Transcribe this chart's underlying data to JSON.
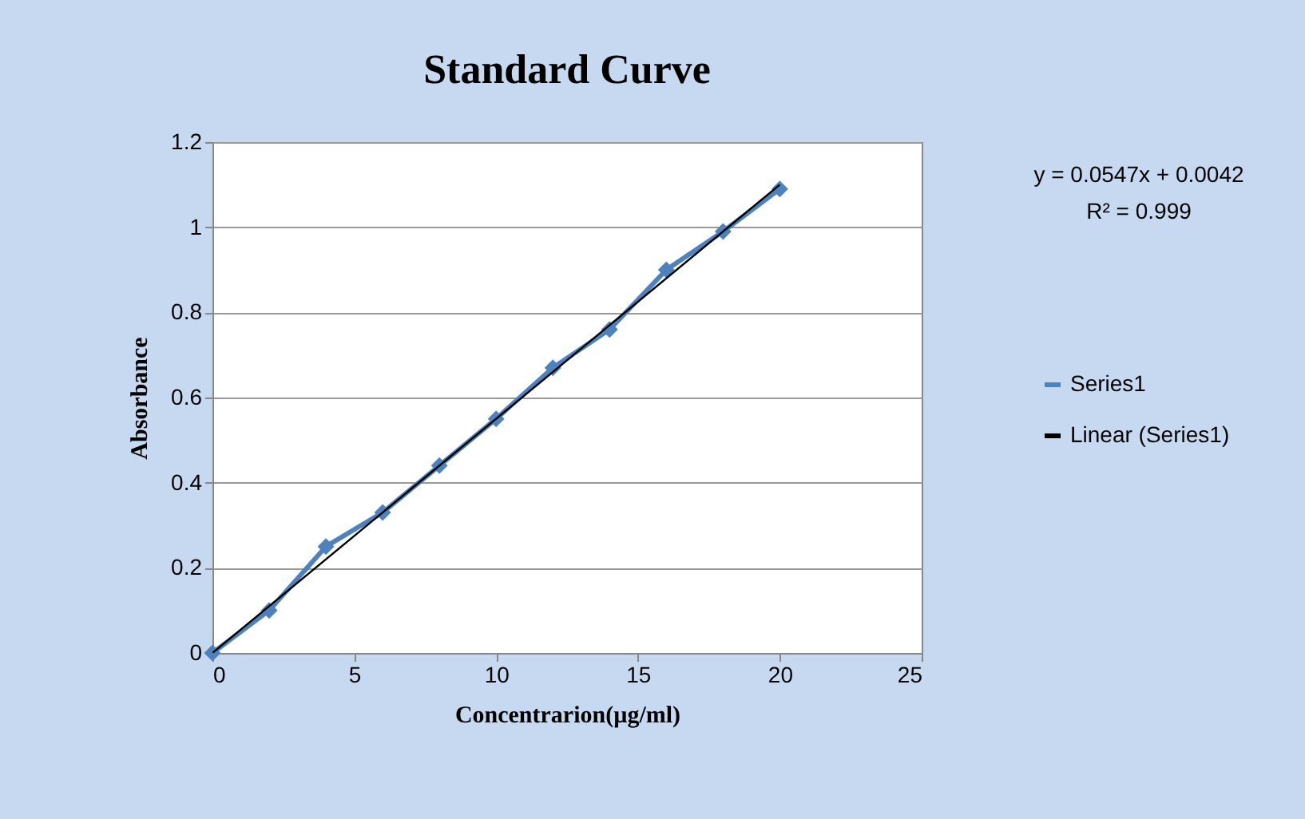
{
  "chart_data": {
    "type": "line",
    "title": "Standard Curve",
    "xlabel": "Concentrarion(µg/ml)",
    "ylabel": "Absorbance",
    "x": [
      0,
      2,
      4,
      6,
      8,
      10,
      12,
      14,
      16,
      18,
      20
    ],
    "series": [
      {
        "name": "Series1",
        "color": "#4f81bd",
        "values": [
          0,
          0.1,
          0.25,
          0.33,
          0.44,
          0.55,
          0.67,
          0.76,
          0.9,
          0.99,
          1.09
        ]
      },
      {
        "name": "Linear (Series1)",
        "color": "#000000",
        "type": "line",
        "marker": "none",
        "x": [
          0,
          20
        ],
        "values": [
          0,
          1.1
        ]
      }
    ],
    "marker": "diamond",
    "xlim": [
      0,
      25
    ],
    "xticks": [
      0,
      5,
      10,
      15,
      20,
      25
    ],
    "ylim": [
      0,
      1.2
    ],
    "yticks": [
      0,
      0.2,
      0.4,
      0.6,
      0.8,
      1,
      1.2
    ],
    "grid": "y",
    "legend": "right",
    "annotations": [
      "y = 0.0547x + 0.0042",
      "R² = 0.999"
    ]
  }
}
